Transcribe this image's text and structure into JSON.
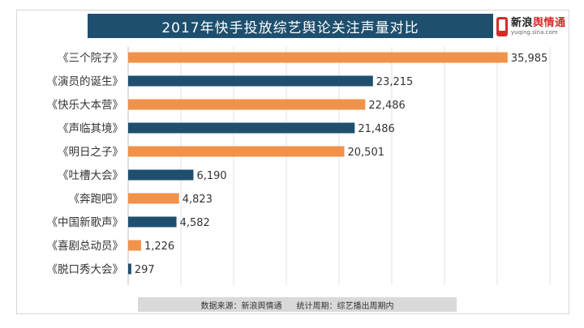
{
  "header": {
    "title": "2017年快手投放综艺舆论关注声量对比",
    "logo_name_part1": "新浪",
    "logo_name_part2": "舆情通",
    "logo_url": "yuqing.sina.com"
  },
  "footer": {
    "source": "数据来源：新浪舆情通",
    "period": "统计周期：综艺播出周期内"
  },
  "colors": {
    "orange": "#f0924a",
    "blue": "#1e4f6e",
    "grid": "#e2e2e2"
  },
  "chart_data": {
    "type": "bar",
    "orientation": "horizontal",
    "title": "2017年快手投放综艺舆论关注声量对比",
    "categories": [
      "《三个院子》",
      "《演员的诞生》",
      "《快乐大本营》",
      "《声临其境》",
      "《明日之子》",
      "《吐槽大会》",
      "《奔跑吧》",
      "《中国新歌声》",
      "《喜剧总动员》",
      "《脱口秀大会》"
    ],
    "values": [
      35985,
      23215,
      22486,
      21486,
      20501,
      6190,
      4823,
      4582,
      1226,
      297
    ],
    "value_labels": [
      "35,985",
      "23,215",
      "22,486",
      "21,486",
      "20,501",
      "6,190",
      "4,823",
      "4,582",
      "1,226",
      "297"
    ],
    "bar_colors": [
      "#f0924a",
      "#1e4f6e",
      "#f0924a",
      "#1e4f6e",
      "#f0924a",
      "#1e4f6e",
      "#f0924a",
      "#1e4f6e",
      "#f0924a",
      "#1e4f6e"
    ],
    "xlim": [
      0,
      40000
    ],
    "grid": true
  }
}
